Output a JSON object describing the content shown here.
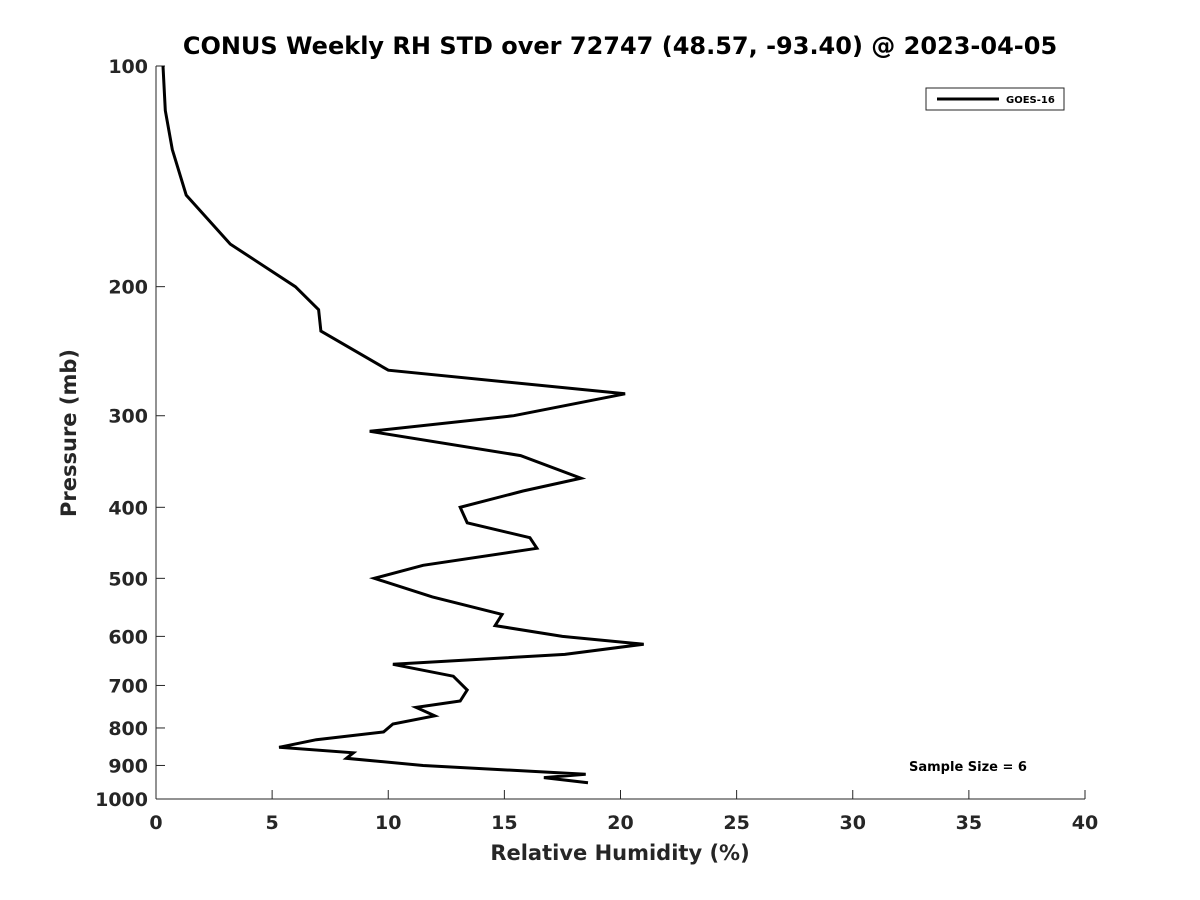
{
  "chart_data": {
    "type": "line",
    "title": "CONUS Weekly RH STD over 72747 (48.57, -93.40) @ 2023-04-05",
    "xlabel": "Relative Humidity (%)",
    "ylabel": "Pressure (mb)",
    "xlim": [
      0,
      40
    ],
    "ylim": [
      100,
      1000
    ],
    "yscale": "log",
    "yreversed": true,
    "grid": false,
    "legend_position": "top-right",
    "xticks": [
      0,
      5,
      10,
      15,
      20,
      25,
      30,
      35,
      40
    ],
    "yticks": [
      100,
      200,
      300,
      400,
      500,
      600,
      700,
      800,
      900,
      1000
    ],
    "series": [
      {
        "name": "GOES-16",
        "color": "#000000",
        "x": [
          0.3,
          0.4,
          0.7,
          1.3,
          3.2,
          6.0,
          7.0,
          7.1,
          10.0,
          20.2,
          15.4,
          9.2,
          15.7,
          18.3,
          15.8,
          13.1,
          13.4,
          16.1,
          16.4,
          11.5,
          9.4,
          11.9,
          14.9,
          14.6,
          17.5,
          21.0,
          17.6,
          10.2,
          12.8,
          13.4,
          13.1,
          11.2,
          12.0,
          10.2,
          9.8,
          6.9,
          5.3,
          8.5,
          8.2,
          11.5,
          18.5,
          16.7,
          18.6
        ],
        "y": [
          100,
          115,
          130,
          150,
          175,
          200,
          215,
          230,
          260,
          280,
          300,
          315,
          340,
          365,
          380,
          400,
          420,
          440,
          455,
          480,
          500,
          530,
          560,
          580,
          600,
          615,
          635,
          655,
          680,
          710,
          735,
          750,
          770,
          790,
          810,
          830,
          850,
          865,
          880,
          900,
          925,
          935,
          950
        ]
      }
    ],
    "annotations": [
      {
        "text": "Sample Size = 6"
      }
    ]
  }
}
